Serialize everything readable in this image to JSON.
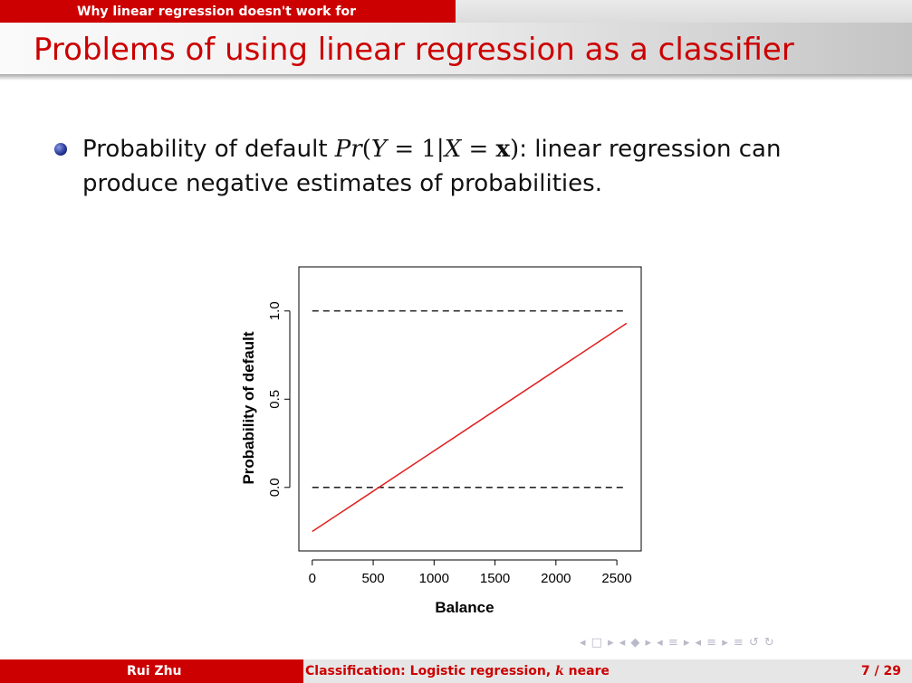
{
  "header": {
    "section_title": "Why linear regression doesn't work for classification?"
  },
  "frame": {
    "title": "Problems of using linear regression as a classifier"
  },
  "bullet": {
    "text_before": "Probability of default ",
    "math": {
      "Pr": "Pr",
      "Y": "Y",
      "eq1": "=",
      "one": "1",
      "bar": "|",
      "X": "X",
      "eq2": "=",
      "x": "x"
    },
    "text_after": ": linear regression can produce negative estimates of probabilities."
  },
  "chart_data": {
    "type": "line",
    "xlabel": "Balance",
    "ylabel": "Probability of default",
    "x_ticks": [
      0,
      500,
      1000,
      1500,
      2000,
      2500
    ],
    "y_ticks": [
      0.0,
      0.5,
      1.0
    ],
    "y_tick_labels": [
      "0.0",
      "0.5",
      "1.0"
    ],
    "xlim": [
      -110,
      2700
    ],
    "ylim": [
      -0.36,
      1.25
    ],
    "reference_lines": [
      {
        "y": 0.0,
        "style": "dashed",
        "color": "#000000",
        "x_range": [
          0,
          2550
        ]
      },
      {
        "y": 1.0,
        "style": "dashed",
        "color": "#000000",
        "x_range": [
          0,
          2550
        ]
      }
    ],
    "series": [
      {
        "x": [
          0,
          2580
        ],
        "values": [
          -0.25,
          0.93
        ],
        "color": "#e02020"
      }
    ],
    "grid": false
  },
  "nav": {
    "symbols": "◂ □ ▸ ◂ ◆ ▸ ◂ ≡ ▸ ◂ ≡ ▸ ≡ ↺ ↻"
  },
  "footer": {
    "author": "Rui Zhu",
    "title_before": "Classification: Logistic regression, ",
    "title_k": "k",
    "title_after": " nearest",
    "page": "7 / 29"
  }
}
